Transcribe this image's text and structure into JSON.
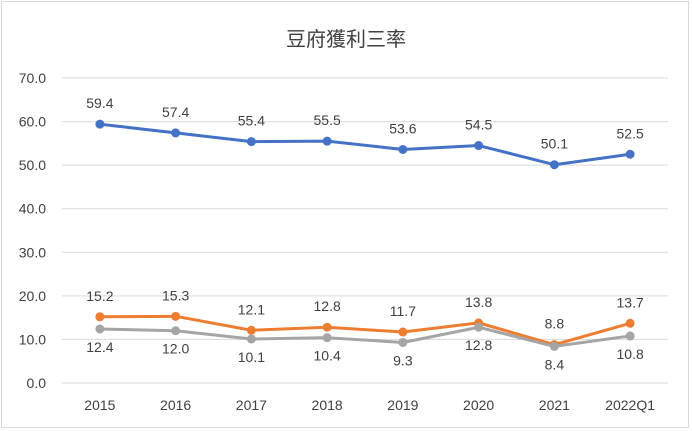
{
  "chart_data": {
    "type": "line",
    "title": "豆府獲利三率",
    "xlabel": "",
    "ylabel": "",
    "ylim": [
      0,
      70
    ],
    "y_ticks": [
      "0.0",
      "10.0",
      "20.0",
      "30.0",
      "40.0",
      "50.0",
      "60.0",
      "70.0"
    ],
    "categories": [
      "2015",
      "2016",
      "2017",
      "2018",
      "2019",
      "2020",
      "2021",
      "2022Q1"
    ],
    "grid": true,
    "legend": "none",
    "series": [
      {
        "values": [
          59.4,
          57.4,
          55.4,
          55.5,
          53.6,
          54.5,
          50.1,
          52.5
        ],
        "labels": [
          "59.4",
          "57.4",
          "55.4",
          "55.5",
          "53.6",
          "54.5",
          "50.1",
          "52.5"
        ],
        "label_position": "above",
        "color": "#4472c4"
      },
      {
        "values": [
          15.2,
          15.3,
          12.1,
          12.8,
          11.7,
          13.8,
          8.8,
          13.7
        ],
        "labels": [
          "15.2",
          "15.3",
          "12.1",
          "12.8",
          "11.7",
          "13.8",
          "8.8",
          "13.7"
        ],
        "label_position": "above",
        "color": "#ed7d31"
      },
      {
        "values": [
          12.4,
          12.0,
          10.1,
          10.4,
          9.3,
          12.8,
          8.4,
          10.8
        ],
        "labels": [
          "12.4",
          "12.0",
          "10.1",
          "10.4",
          "9.3",
          "12.8",
          "8.4",
          "10.8"
        ],
        "label_position": "below",
        "color": "#a5a5a5"
      }
    ]
  }
}
